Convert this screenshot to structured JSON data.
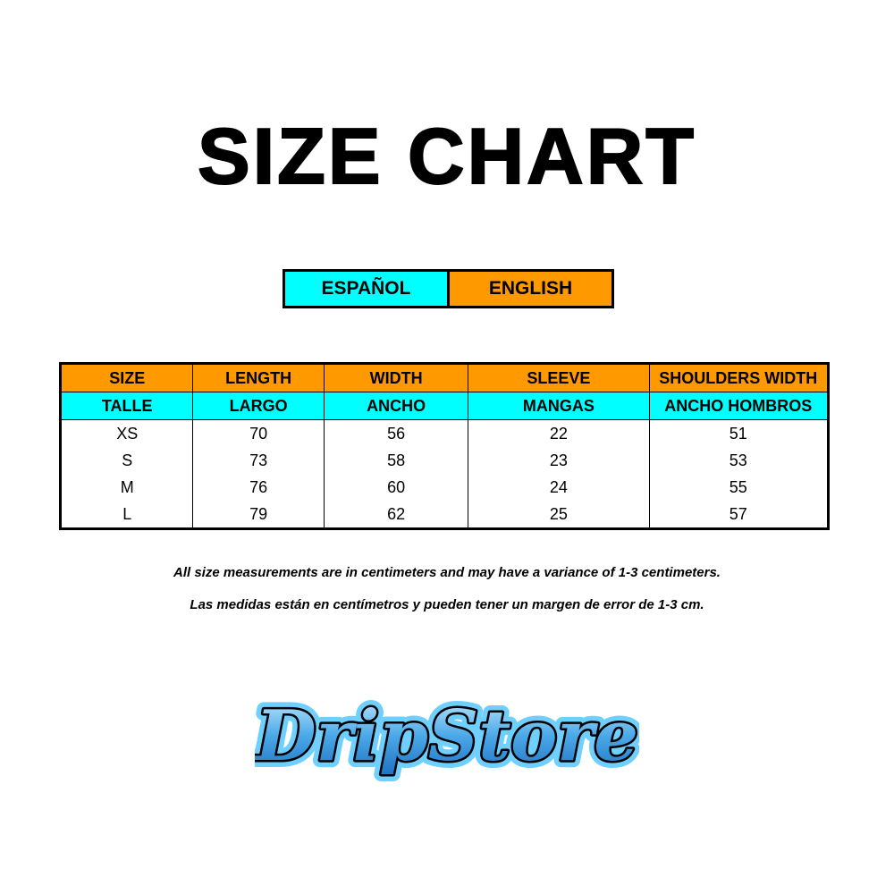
{
  "title": "SIZE CHART",
  "legend": {
    "spanish": "ESPAÑOL",
    "english": "ENGLISH",
    "spanish_color": "#00ffff",
    "english_color": "#ff9900"
  },
  "table": {
    "headers_en": [
      "SIZE",
      "LENGTH",
      "WIDTH",
      "SLEEVE",
      "SHOULDERS WIDTH"
    ],
    "headers_es": [
      "TALLE",
      "LARGO",
      "ANCHO",
      "MANGAS",
      "ANCHO HOMBROS"
    ],
    "rows": [
      [
        "XS",
        "70",
        "56",
        "22",
        "51"
      ],
      [
        "S",
        "73",
        "58",
        "23",
        "53"
      ],
      [
        "M",
        "76",
        "60",
        "24",
        "55"
      ],
      [
        "L",
        "79",
        "62",
        "25",
        "57"
      ]
    ]
  },
  "notes": {
    "english": "All size measurements are in centimeters and may have a variance of 1-3 centimeters.",
    "spanish": "Las medidas están en centímetros y pueden tener un margen de error de 1-3 cm."
  },
  "logo": {
    "text": "DripStore"
  }
}
